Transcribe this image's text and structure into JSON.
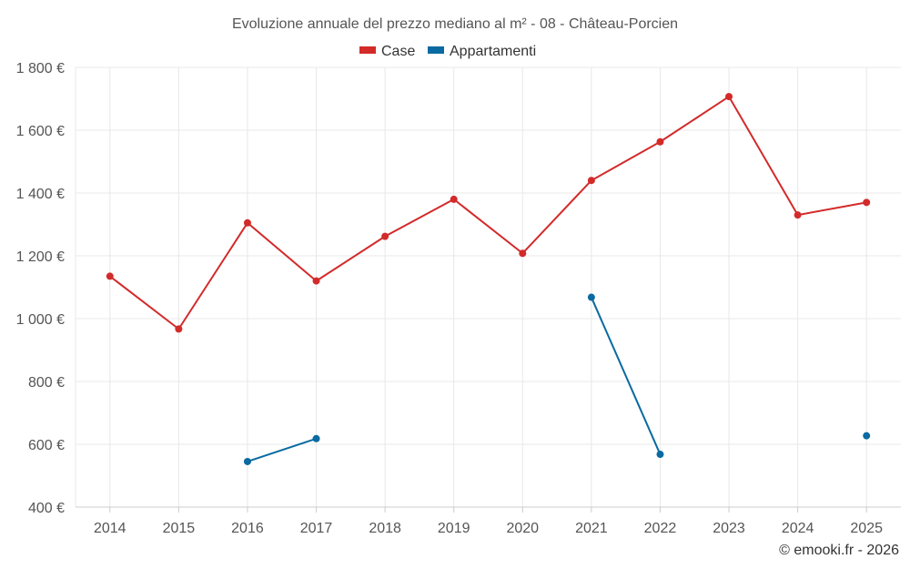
{
  "chart_data": {
    "type": "line",
    "title": "Evoluzione annuale del prezzo mediano al m² - 08 - Château-Porcien",
    "categories": [
      "2014",
      "2015",
      "2016",
      "2017",
      "2018",
      "2019",
      "2020",
      "2021",
      "2022",
      "2023",
      "2024",
      "2025"
    ],
    "series": [
      {
        "name": "Case",
        "color": "#d32a2a",
        "values": [
          1135,
          967,
          1305,
          1120,
          1262,
          1380,
          1208,
          1440,
          1563,
          1707,
          1330,
          1370
        ]
      },
      {
        "name": "Appartamenti",
        "color": "#0a6aa1",
        "values": [
          null,
          null,
          545,
          618,
          null,
          null,
          null,
          1068,
          568,
          null,
          null,
          627
        ]
      }
    ],
    "ylim": [
      400,
      1800
    ],
    "yticks": [
      400,
      600,
      800,
      1000,
      1200,
      1400,
      1600,
      1800
    ],
    "ytick_labels": [
      "400 €",
      "600 €",
      "800 €",
      "1 000 €",
      "1 200 €",
      "1 400 €",
      "1 600 €",
      "1 800 €"
    ],
    "xlabel": "",
    "ylabel": "",
    "grid": true,
    "legend_position": "top-center"
  },
  "credit": "© emooki.fr - 2026"
}
